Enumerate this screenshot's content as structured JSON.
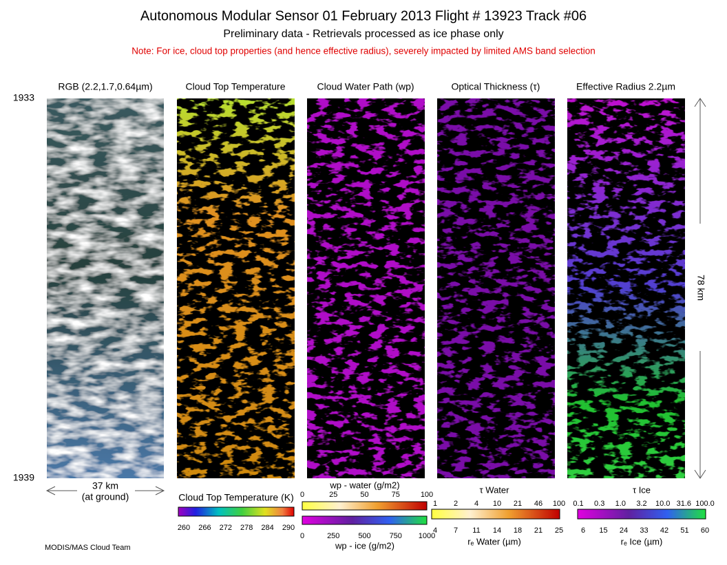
{
  "header": {
    "title": "Autonomous Modular Sensor  01 February 2013  Flight # 13923 Track #06",
    "subtitle": "Preliminary data - Retrievals processed as ice phase only",
    "note": "Note: For ice, cloud top properties (and hence effective radius), severely impacted by limited AMS band selection"
  },
  "panels": [
    "RGB (2.2,1.7,0.64µm)",
    "Cloud Top Temperature",
    "Cloud Water Path (wp)",
    "Optical Thickness (τ)",
    "Effective Radius 2.2µm"
  ],
  "time": {
    "start": "1933",
    "end": "1939"
  },
  "scale": {
    "across": "37 km",
    "across_note": "(at ground)",
    "along": "78 km"
  },
  "colorbars": {
    "temperature": {
      "title": "Cloud Top Temperature (K)",
      "ticks": [
        "260",
        "266",
        "272",
        "278",
        "284",
        "290"
      ]
    },
    "water_path": {
      "water_title": "wp - water (g/m2)",
      "water_ticks": [
        "0",
        "25",
        "50",
        "75",
        "100"
      ],
      "ice_title": "wp - ice (g/m2)",
      "ice_ticks": [
        "0",
        "250",
        "500",
        "750",
        "1000"
      ]
    },
    "tau_water": {
      "title": "τ Water",
      "ticks": [
        "1",
        "2",
        "4",
        "10",
        "21",
        "46",
        "100"
      ],
      "re_title": "rₑ Water (µm)",
      "re_ticks": [
        "4",
        "7",
        "11",
        "14",
        "18",
        "21",
        "25"
      ]
    },
    "tau_ice": {
      "title": "τ Ice",
      "ticks": [
        "0.1",
        "0.3",
        "1.0",
        "3.2",
        "10.0",
        "31.6",
        "100.0"
      ],
      "re_title": "rₑ Ice (µm)",
      "re_ticks": [
        "6",
        "15",
        "24",
        "33",
        "42",
        "51",
        "60"
      ]
    }
  },
  "footer": "MODIS/MAS Cloud Team"
}
